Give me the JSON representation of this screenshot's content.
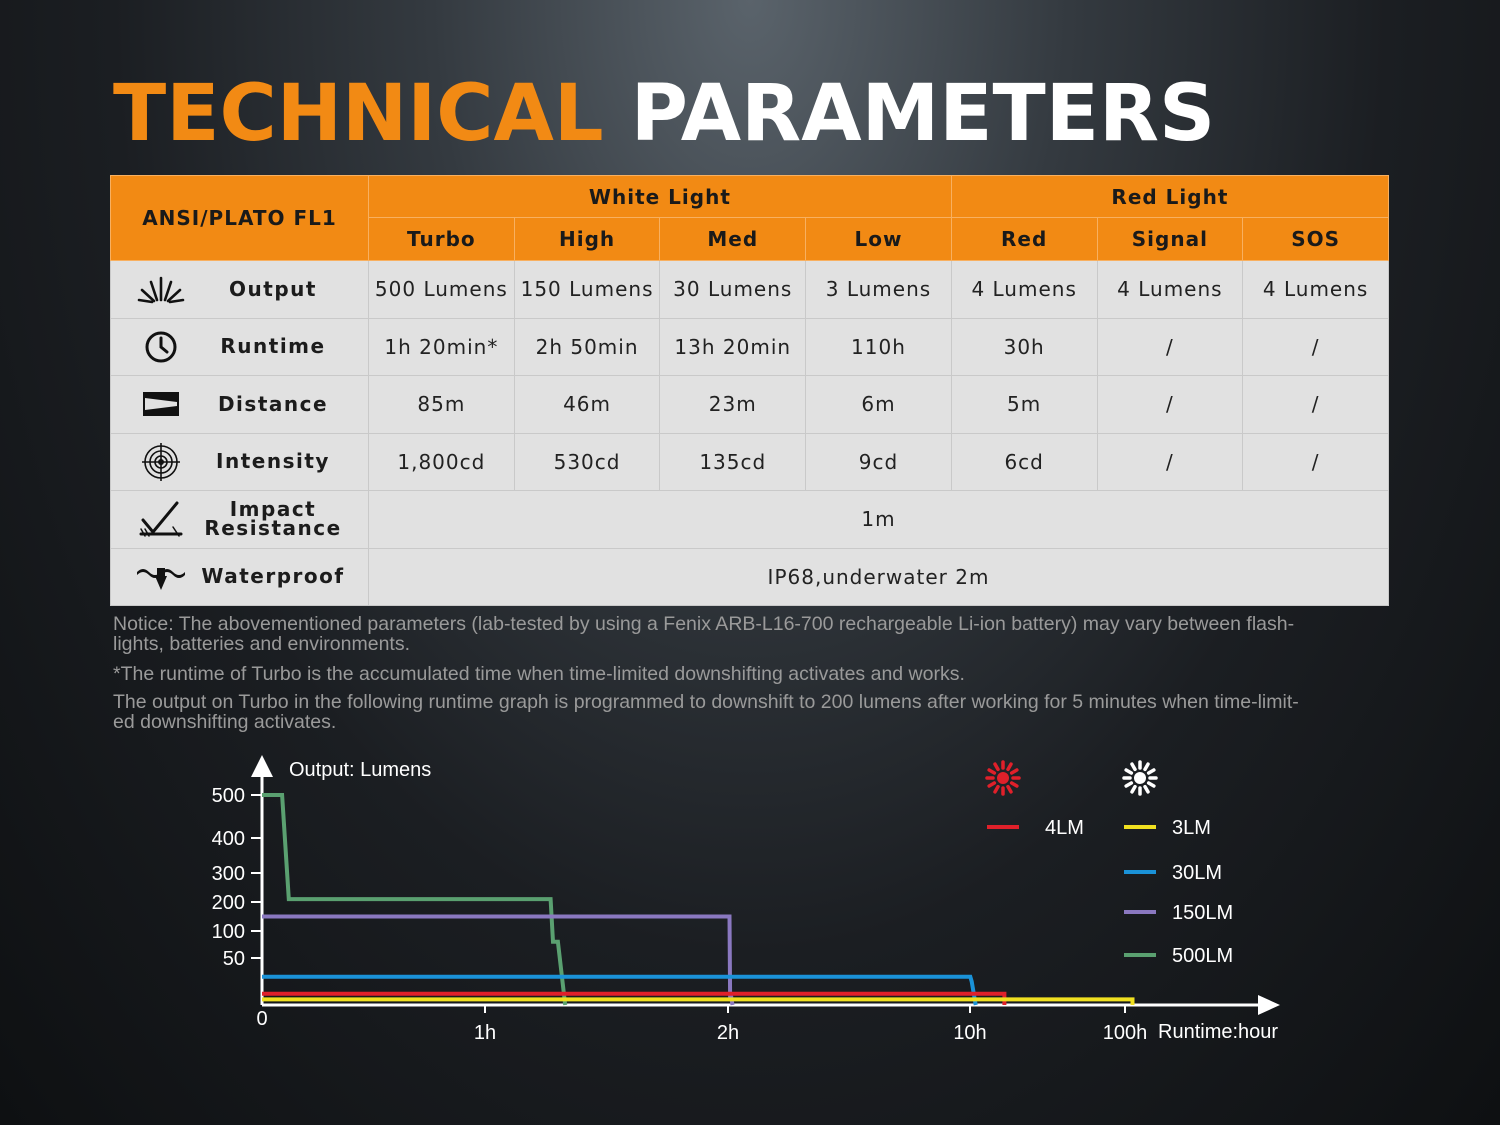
{
  "title": {
    "part1": "TECHNICAL",
    "part2": "PARAMETERS"
  },
  "table": {
    "corner_label": "ANSI/PLATO FL1",
    "groups": [
      "White Light",
      "Red Light"
    ],
    "modes": [
      "Turbo",
      "High",
      "Med",
      "Low",
      "Red",
      "Signal",
      "SOS"
    ],
    "rows": [
      {
        "icon": "output-icon",
        "label": "Output",
        "values": [
          "500 Lumens",
          "150 Lumens",
          "30 Lumens",
          "3 Lumens",
          "4 Lumens",
          "4 Lumens",
          "4 Lumens"
        ]
      },
      {
        "icon": "clock-icon",
        "label": "Runtime",
        "values": [
          "1h 20min*",
          "2h 50min",
          "13h 20min",
          "110h",
          "30h",
          "/",
          "/"
        ]
      },
      {
        "icon": "distance-icon",
        "label": "Distance",
        "values": [
          "85m",
          "46m",
          "23m",
          "6m",
          "5m",
          "/",
          "/"
        ]
      },
      {
        "icon": "target-icon",
        "label": "Intensity",
        "values": [
          "1,800cd",
          "530cd",
          "135cd",
          "9cd",
          "6cd",
          "/",
          "/"
        ]
      }
    ],
    "impact": {
      "icon": "impact-icon",
      "label_line1": "Impact",
      "label_line2": "Resistance",
      "value": "1m"
    },
    "waterproof": {
      "icon": "waterproof-icon",
      "label": "Waterproof",
      "value": "IP68,underwater 2m"
    }
  },
  "notices": [
    {
      "line1": "Notice: The abovementioned parameters (lab-tested by using a Fenix ARB-L16-700 rechargeable Li-ion battery) may vary between flash-",
      "line2": "lights, batteries and environments."
    },
    {
      "line1": "*The runtime of Turbo is the accumulated time when time-limited downshifting activates and works.",
      "line2": ""
    },
    {
      "line1": "The output on Turbo in the following runtime graph is programmed to downshift to 200 lumens after working for 5 minutes when time-limit-",
      "line2": "ed downshifting activates."
    }
  ],
  "chart_data": {
    "type": "line",
    "ylabel": "Output: Lumens",
    "xlabel": "Runtime:hour",
    "y_ticks": [
      500,
      400,
      300,
      200,
      100,
      50
    ],
    "x_ticks": [
      "0",
      "1h",
      "2h",
      "10h",
      "100h"
    ],
    "legend_groups": [
      {
        "icon": "red-light-icon",
        "color": "#e0202a",
        "entries": [
          "4LM"
        ]
      },
      {
        "icon": "white-light-icon",
        "color": "#ffffff",
        "entries": [
          "3LM",
          "30LM",
          "150LM",
          "500LM"
        ]
      }
    ],
    "series": [
      {
        "name": "500LM",
        "color": "#5aa070",
        "points": [
          [
            0,
            500
          ],
          [
            0.09,
            500
          ],
          [
            0.12,
            210
          ],
          [
            1.27,
            210
          ],
          [
            1.28,
            80
          ],
          [
            1.3,
            80
          ],
          [
            1.33,
            0
          ]
        ]
      },
      {
        "name": "150LM",
        "color": "#8a78c0",
        "points": [
          [
            0,
            150
          ],
          [
            2.05,
            150
          ],
          [
            2.07,
            10
          ],
          [
            2.1,
            10
          ],
          [
            2.15,
            0
          ]
        ]
      },
      {
        "name": "30LM",
        "color": "#1a92d8",
        "points": [
          [
            0,
            30
          ],
          [
            10.2,
            30
          ],
          [
            11,
            25
          ],
          [
            13.3,
            0
          ]
        ]
      },
      {
        "name": "4LM",
        "color": "#e0202a",
        "points": [
          [
            0,
            12
          ],
          [
            30,
            12
          ],
          [
            30,
            0
          ]
        ]
      },
      {
        "name": "3LM",
        "color": "#f0e020",
        "points": [
          [
            0,
            6
          ],
          [
            110,
            6
          ],
          [
            110,
            0
          ]
        ]
      }
    ]
  }
}
